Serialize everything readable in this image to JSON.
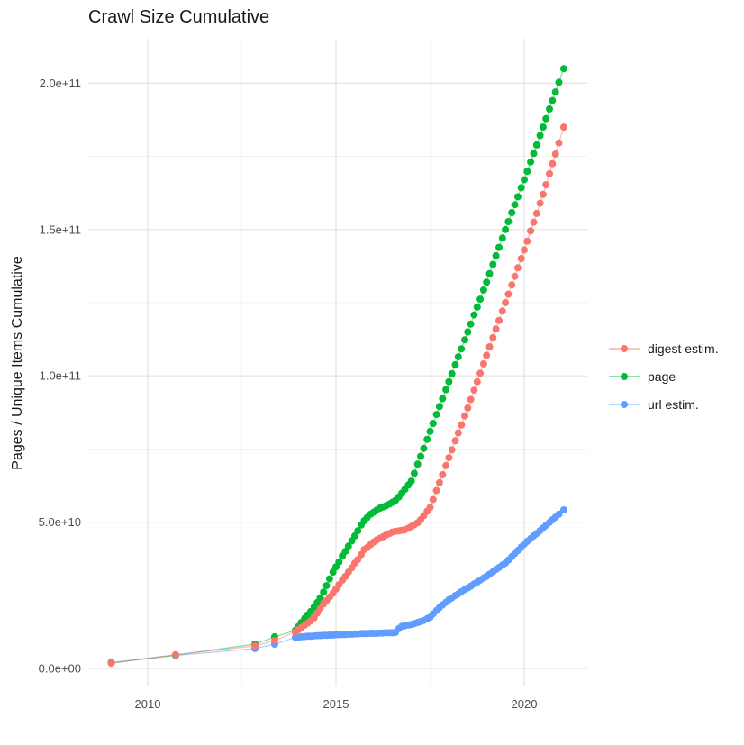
{
  "title": "Crawl Size Cumulative",
  "axes": {
    "y_title": "Pages / Unique Items Cumulative",
    "x_title": "",
    "y_ticks": [
      {
        "label": "0.0e+00",
        "value_e9": 0
      },
      {
        "label": "5.0e+10",
        "value_e9": 50
      },
      {
        "label": "1.0e+11",
        "value_e9": 100
      },
      {
        "label": "1.5e+11",
        "value_e9": 150
      },
      {
        "label": "2.0e+11",
        "value_e9": 200
      }
    ],
    "y_minor_values_e9": [
      25,
      75,
      125,
      175
    ],
    "x_ticks": [
      {
        "label": "2010",
        "value": 2010
      },
      {
        "label": "2015",
        "value": 2015
      },
      {
        "label": "2020",
        "value": 2020
      }
    ],
    "x_minor_values": [
      2012.5,
      2017.5
    ]
  },
  "colors": {
    "background": "#ffffff",
    "grid_major": "#e3e3e3",
    "grid_minor": "#eeeeee",
    "tick_text": "#4d4d4d",
    "title_text": "#1a1a1a",
    "digest": "#F8766D",
    "page": "#00BA38",
    "url": "#619CFF"
  },
  "chart_data": {
    "type": "scatter",
    "mode": "points+connecting-lines",
    "title": "Crawl Size Cumulative",
    "xlabel": "",
    "ylabel": "Pages / Unique Items Cumulative",
    "x_unit": "year (decimal)",
    "y_unit": "count, values stored as multiples of 1e9",
    "xlim": [
      2008.4,
      2021.7
    ],
    "ylim_e9": [
      -10,
      216
    ],
    "grid": "on",
    "legend_position": "right-center",
    "series": [
      {
        "name": "digest estim.",
        "color": "#F8766D",
        "points": [
          [
            2009.03,
            1.8
          ],
          [
            2010.74,
            4.7
          ],
          [
            2012.85,
            7.7
          ],
          [
            2013.37,
            9.5
          ],
          [
            2013.92,
            12.5
          ],
          [
            2014.0,
            13.2
          ],
          [
            2014.08,
            14.0
          ],
          [
            2014.17,
            14.8
          ],
          [
            2014.25,
            15.5
          ],
          [
            2014.33,
            16.3
          ],
          [
            2014.42,
            17.3
          ],
          [
            2014.5,
            18.9
          ],
          [
            2014.58,
            20.4
          ],
          [
            2014.67,
            22.0
          ],
          [
            2014.75,
            23.2
          ],
          [
            2014.83,
            24.4
          ],
          [
            2014.92,
            25.7
          ],
          [
            2015.0,
            27.1
          ],
          [
            2015.08,
            28.6
          ],
          [
            2015.17,
            30.2
          ],
          [
            2015.25,
            31.4
          ],
          [
            2015.33,
            32.9
          ],
          [
            2015.42,
            34.4
          ],
          [
            2015.5,
            36.0
          ],
          [
            2015.58,
            37.2
          ],
          [
            2015.67,
            38.9
          ],
          [
            2015.75,
            40.6
          ],
          [
            2015.83,
            41.3
          ],
          [
            2015.92,
            42.3
          ],
          [
            2016.0,
            43.2
          ],
          [
            2016.08,
            43.9
          ],
          [
            2016.17,
            44.5
          ],
          [
            2016.25,
            45.0
          ],
          [
            2016.33,
            45.6
          ],
          [
            2016.42,
            46.1
          ],
          [
            2016.5,
            46.6
          ],
          [
            2016.58,
            46.9
          ],
          [
            2016.67,
            47.0
          ],
          [
            2016.75,
            47.2
          ],
          [
            2016.83,
            47.4
          ],
          [
            2016.92,
            47.9
          ],
          [
            2017.0,
            48.5
          ],
          [
            2017.08,
            49.1
          ],
          [
            2017.17,
            49.8
          ],
          [
            2017.25,
            50.8
          ],
          [
            2017.33,
            52.2
          ],
          [
            2017.42,
            53.7
          ],
          [
            2017.5,
            55.0
          ],
          [
            2017.58,
            57.7
          ],
          [
            2017.67,
            60.8
          ],
          [
            2017.75,
            63.5
          ],
          [
            2017.83,
            66.2
          ],
          [
            2017.92,
            69.3
          ],
          [
            2018.0,
            72.0
          ],
          [
            2018.08,
            74.7
          ],
          [
            2018.17,
            77.8
          ],
          [
            2018.25,
            80.5
          ],
          [
            2018.33,
            83.2
          ],
          [
            2018.42,
            86.3
          ],
          [
            2018.5,
            89.0
          ],
          [
            2018.58,
            91.9
          ],
          [
            2018.67,
            95.1
          ],
          [
            2018.75,
            98.0
          ],
          [
            2018.83,
            100.9
          ],
          [
            2018.92,
            104.1
          ],
          [
            2019.0,
            107.0
          ],
          [
            2019.08,
            109.9
          ],
          [
            2019.17,
            113.1
          ],
          [
            2019.25,
            116.0
          ],
          [
            2019.33,
            118.9
          ],
          [
            2019.42,
            122.1
          ],
          [
            2019.5,
            125.0
          ],
          [
            2019.58,
            127.9
          ],
          [
            2019.67,
            131.1
          ],
          [
            2019.75,
            134.0
          ],
          [
            2019.83,
            136.9
          ],
          [
            2019.92,
            140.1
          ],
          [
            2020.0,
            143.0
          ],
          [
            2020.08,
            146.0
          ],
          [
            2020.17,
            149.5
          ],
          [
            2020.25,
            152.5
          ],
          [
            2020.33,
            155.5
          ],
          [
            2020.42,
            159.0
          ],
          [
            2020.5,
            162.0
          ],
          [
            2020.58,
            165.3
          ],
          [
            2020.67,
            169.1
          ],
          [
            2020.75,
            172.5
          ],
          [
            2020.83,
            175.8
          ],
          [
            2020.92,
            179.6
          ],
          [
            2021.05,
            185.0
          ]
        ]
      },
      {
        "name": "page",
        "color": "#00BA38",
        "points": [
          [
            2009.03,
            2.0
          ],
          [
            2010.74,
            4.6
          ],
          [
            2012.85,
            8.3
          ],
          [
            2013.37,
            10.8
          ],
          [
            2013.92,
            13.0
          ],
          [
            2014.0,
            14.3
          ],
          [
            2014.08,
            15.7
          ],
          [
            2014.17,
            17.1
          ],
          [
            2014.25,
            18.3
          ],
          [
            2014.33,
            19.5
          ],
          [
            2014.42,
            21.0
          ],
          [
            2014.5,
            22.5
          ],
          [
            2014.58,
            24.1
          ],
          [
            2014.67,
            26.1
          ],
          [
            2014.75,
            28.3
          ],
          [
            2014.83,
            30.6
          ],
          [
            2014.92,
            32.9
          ],
          [
            2015.0,
            34.7
          ],
          [
            2015.08,
            36.4
          ],
          [
            2015.17,
            38.4
          ],
          [
            2015.25,
            40.0
          ],
          [
            2015.33,
            41.8
          ],
          [
            2015.42,
            43.6
          ],
          [
            2015.5,
            45.3
          ],
          [
            2015.58,
            47.0
          ],
          [
            2015.67,
            49.0
          ],
          [
            2015.75,
            50.5
          ],
          [
            2015.83,
            51.6
          ],
          [
            2015.92,
            52.7
          ],
          [
            2016.0,
            53.4
          ],
          [
            2016.08,
            54.1
          ],
          [
            2016.17,
            54.8
          ],
          [
            2016.25,
            55.2
          ],
          [
            2016.33,
            55.6
          ],
          [
            2016.42,
            56.2
          ],
          [
            2016.5,
            56.8
          ],
          [
            2016.58,
            57.4
          ],
          [
            2016.67,
            58.6
          ],
          [
            2016.75,
            59.9
          ],
          [
            2016.83,
            61.2
          ],
          [
            2016.92,
            62.7
          ],
          [
            2017.0,
            64.0
          ],
          [
            2017.08,
            66.7
          ],
          [
            2017.17,
            69.8
          ],
          [
            2017.25,
            72.5
          ],
          [
            2017.33,
            75.2
          ],
          [
            2017.42,
            78.3
          ],
          [
            2017.5,
            81.0
          ],
          [
            2017.58,
            83.7
          ],
          [
            2017.67,
            86.8
          ],
          [
            2017.75,
            89.5
          ],
          [
            2017.83,
            92.2
          ],
          [
            2017.92,
            95.3
          ],
          [
            2018.0,
            98.0
          ],
          [
            2018.08,
            100.7
          ],
          [
            2018.17,
            103.8
          ],
          [
            2018.25,
            106.5
          ],
          [
            2018.33,
            109.2
          ],
          [
            2018.42,
            112.3
          ],
          [
            2018.5,
            115.0
          ],
          [
            2018.58,
            117.7
          ],
          [
            2018.67,
            120.8
          ],
          [
            2018.75,
            123.5
          ],
          [
            2018.83,
            126.2
          ],
          [
            2018.92,
            129.3
          ],
          [
            2019.0,
            132.0
          ],
          [
            2019.08,
            134.9
          ],
          [
            2019.17,
            138.1
          ],
          [
            2019.25,
            141.0
          ],
          [
            2019.33,
            143.9
          ],
          [
            2019.42,
            147.1
          ],
          [
            2019.5,
            150.0
          ],
          [
            2019.58,
            152.7
          ],
          [
            2019.67,
            155.8
          ],
          [
            2019.75,
            158.5
          ],
          [
            2019.83,
            161.2
          ],
          [
            2019.92,
            164.3
          ],
          [
            2020.0,
            167.0
          ],
          [
            2020.08,
            169.9
          ],
          [
            2020.17,
            173.1
          ],
          [
            2020.25,
            176.0
          ],
          [
            2020.33,
            178.9
          ],
          [
            2020.42,
            182.1
          ],
          [
            2020.5,
            185.0
          ],
          [
            2020.58,
            187.9
          ],
          [
            2020.67,
            191.2
          ],
          [
            2020.75,
            194.1
          ],
          [
            2020.83,
            197.0
          ],
          [
            2020.92,
            200.3
          ],
          [
            2021.05,
            205.0
          ]
        ]
      },
      {
        "name": "url estim.",
        "color": "#619CFF",
        "points": [
          [
            2009.03,
            1.9
          ],
          [
            2010.74,
            4.4
          ],
          [
            2012.85,
            6.8
          ],
          [
            2013.37,
            8.3
          ],
          [
            2013.92,
            10.6
          ],
          [
            2014.0,
            10.7
          ],
          [
            2014.08,
            10.8
          ],
          [
            2014.17,
            10.9
          ],
          [
            2014.25,
            11.0
          ],
          [
            2014.33,
            11.0
          ],
          [
            2014.42,
            11.1
          ],
          [
            2014.5,
            11.2
          ],
          [
            2014.58,
            11.2
          ],
          [
            2014.67,
            11.3
          ],
          [
            2014.75,
            11.3
          ],
          [
            2014.83,
            11.4
          ],
          [
            2014.92,
            11.4
          ],
          [
            2015.0,
            11.5
          ],
          [
            2015.08,
            11.5
          ],
          [
            2015.17,
            11.6
          ],
          [
            2015.25,
            11.6
          ],
          [
            2015.33,
            11.7
          ],
          [
            2015.42,
            11.7
          ],
          [
            2015.5,
            11.8
          ],
          [
            2015.58,
            11.8
          ],
          [
            2015.67,
            11.9
          ],
          [
            2015.75,
            11.9
          ],
          [
            2015.83,
            11.9
          ],
          [
            2015.92,
            12.0
          ],
          [
            2016.0,
            12.0
          ],
          [
            2016.08,
            12.0
          ],
          [
            2016.17,
            12.1
          ],
          [
            2016.25,
            12.1
          ],
          [
            2016.33,
            12.2
          ],
          [
            2016.42,
            12.2
          ],
          [
            2016.5,
            12.2
          ],
          [
            2016.58,
            12.3
          ],
          [
            2016.67,
            13.6
          ],
          [
            2016.75,
            14.4
          ],
          [
            2016.83,
            14.6
          ],
          [
            2016.92,
            14.8
          ],
          [
            2017.0,
            15.0
          ],
          [
            2017.08,
            15.3
          ],
          [
            2017.17,
            15.7
          ],
          [
            2017.25,
            16.0
          ],
          [
            2017.33,
            16.4
          ],
          [
            2017.42,
            17.0
          ],
          [
            2017.5,
            17.5
          ],
          [
            2017.58,
            18.6
          ],
          [
            2017.67,
            19.8
          ],
          [
            2017.75,
            20.8
          ],
          [
            2017.83,
            21.7
          ],
          [
            2017.92,
            22.6
          ],
          [
            2018.0,
            23.5
          ],
          [
            2018.08,
            24.1
          ],
          [
            2018.17,
            24.9
          ],
          [
            2018.25,
            25.5
          ],
          [
            2018.33,
            26.2
          ],
          [
            2018.42,
            26.9
          ],
          [
            2018.5,
            27.5
          ],
          [
            2018.58,
            28.1
          ],
          [
            2018.67,
            28.9
          ],
          [
            2018.75,
            29.5
          ],
          [
            2018.83,
            30.2
          ],
          [
            2018.92,
            30.9
          ],
          [
            2019.0,
            31.5
          ],
          [
            2019.08,
            32.2
          ],
          [
            2019.17,
            33.0
          ],
          [
            2019.25,
            33.8
          ],
          [
            2019.33,
            34.5
          ],
          [
            2019.42,
            35.3
          ],
          [
            2019.5,
            36.0
          ],
          [
            2019.58,
            37.0
          ],
          [
            2019.67,
            38.2
          ],
          [
            2019.75,
            39.3
          ],
          [
            2019.83,
            40.3
          ],
          [
            2019.92,
            41.5
          ],
          [
            2020.0,
            42.5
          ],
          [
            2020.08,
            43.4
          ],
          [
            2020.17,
            44.4
          ],
          [
            2020.25,
            45.3
          ],
          [
            2020.33,
            46.1
          ],
          [
            2020.42,
            47.1
          ],
          [
            2020.5,
            48.0
          ],
          [
            2020.58,
            48.9
          ],
          [
            2020.67,
            49.9
          ],
          [
            2020.75,
            50.8
          ],
          [
            2020.83,
            51.7
          ],
          [
            2020.92,
            52.7
          ],
          [
            2021.05,
            54.2
          ]
        ]
      }
    ]
  },
  "legend": {
    "items": [
      {
        "label": "digest estim.",
        "color": "#F8766D"
      },
      {
        "label": "page",
        "color": "#00BA38"
      },
      {
        "label": "url estim.",
        "color": "#619CFF"
      }
    ]
  }
}
